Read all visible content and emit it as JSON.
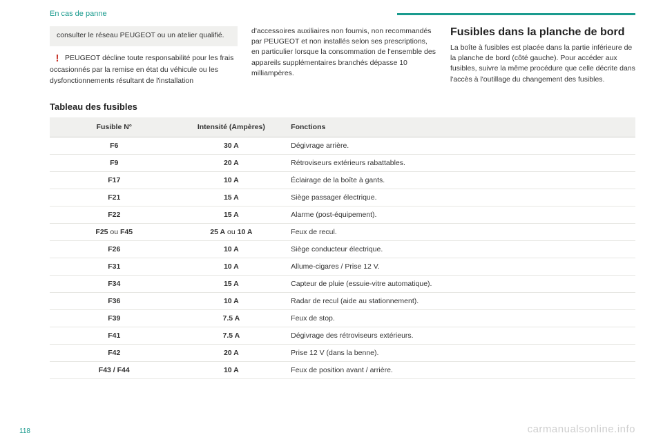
{
  "breadcrumb": "En cas de panne",
  "page_number": "118",
  "watermark": "carmanualsonline.info",
  "accent_color": "#1a9b8e",
  "warn_color": "#c73328",
  "note_bg": "#f0f0ee",
  "left": {
    "note": "consulter le réseau PEUGEOT ou un atelier qualifié.",
    "warn": "PEUGEOT décline toute responsabilité pour les frais occasionnés par la remise en état du véhicule ou les dysfonctionnements résultant de l'installation"
  },
  "mid": {
    "text": "d'accessoires auxiliaires non fournis, non recommandés par PEUGEOT et non installés selon ses prescriptions, en particulier lorsque la consommation de l'ensemble des appareils supplémentaires branchés dépasse 10 milliampères."
  },
  "right": {
    "title": "Fusibles dans la planche de bord",
    "text": "La boîte à fusibles est placée dans la partie inférieure de la planche de bord (côté gauche). Pour accéder aux fusibles, suivre la même procédure que celle décrite dans l'accès à l'outillage du changement des fusibles."
  },
  "table": {
    "title": "Tableau des fusibles",
    "columns": [
      "Fusible N°",
      "Intensité (Ampères)",
      "Fonctions"
    ],
    "rows": [
      {
        "n_bold": "F6",
        "n_plain": "",
        "a_bold": "30 A",
        "a_plain": "",
        "f": "Dégivrage arrière."
      },
      {
        "n_bold": "F9",
        "n_plain": "",
        "a_bold": "20 A",
        "a_plain": "",
        "f": "Rétroviseurs extérieurs rabattables."
      },
      {
        "n_bold": "F17",
        "n_plain": "",
        "a_bold": "10 A",
        "a_plain": "",
        "f": "Éclairage de la boîte à gants."
      },
      {
        "n_bold": "F21",
        "n_plain": "",
        "a_bold": "15 A",
        "a_plain": "",
        "f": "Siège passager électrique."
      },
      {
        "n_bold": "F22",
        "n_plain": "",
        "a_bold": "15 A",
        "a_plain": "",
        "f": "Alarme (post-équipement)."
      },
      {
        "n_bold": "F25",
        "n_plain": " ou ",
        "n_bold2": "F45",
        "a_bold": "25 A",
        "a_plain": " ou ",
        "a_bold2": "10 A",
        "f": "Feux de recul."
      },
      {
        "n_bold": "F26",
        "n_plain": "",
        "a_bold": "10 A",
        "a_plain": "",
        "f": "Siège conducteur électrique."
      },
      {
        "n_bold": "F31",
        "n_plain": "",
        "a_bold": "10 A",
        "a_plain": "",
        "f": "Allume-cigares / Prise 12 V."
      },
      {
        "n_bold": "F34",
        "n_plain": "",
        "a_bold": "15 A",
        "a_plain": "",
        "f": "Capteur de pluie (essuie-vitre automatique)."
      },
      {
        "n_bold": "F36",
        "n_plain": "",
        "a_bold": "10 A",
        "a_plain": "",
        "f": "Radar de recul (aide au stationnement)."
      },
      {
        "n_bold": "F39",
        "n_plain": "",
        "a_bold": "7.5 A",
        "a_plain": "",
        "f": "Feux de stop."
      },
      {
        "n_bold": "F41",
        "n_plain": "",
        "a_bold": "7.5 A",
        "a_plain": "",
        "f": "Dégivrage des rétroviseurs extérieurs."
      },
      {
        "n_bold": "F42",
        "n_plain": "",
        "a_bold": "20 A",
        "a_plain": "",
        "f": "Prise 12 V (dans la benne)."
      },
      {
        "n_bold": "F43 / F44",
        "n_plain": "",
        "a_bold": "10 A",
        "a_plain": "",
        "f": "Feux de position avant / arrière."
      }
    ]
  }
}
